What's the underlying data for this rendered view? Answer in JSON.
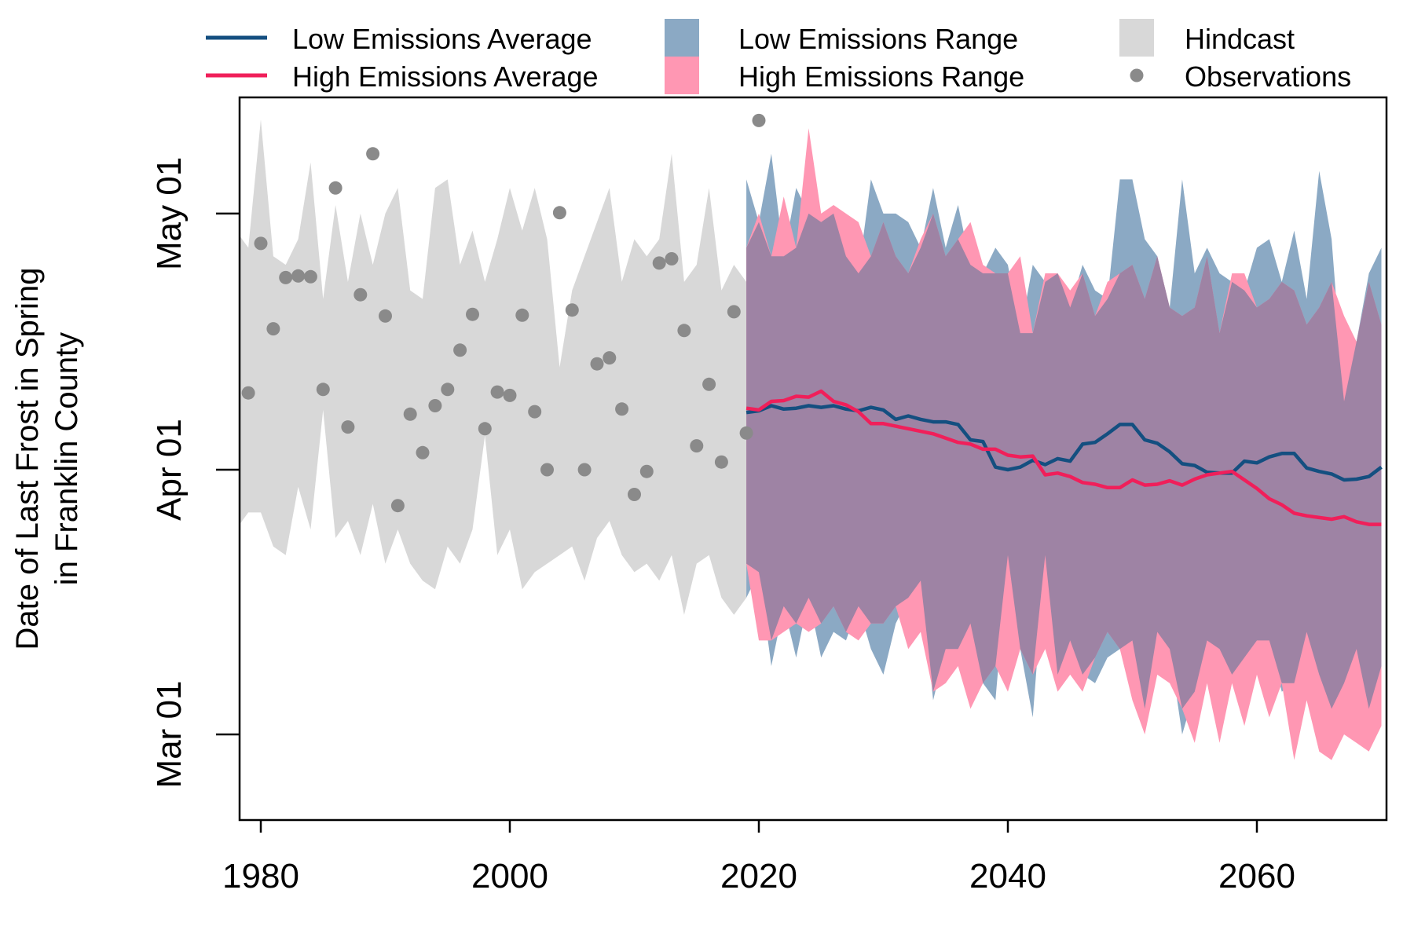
{
  "chart_data": {
    "type": "line",
    "ylabel": [
      "Date of Last Frost in Spring",
      "in Franklin County"
    ],
    "xlim": [
      1978,
      2070
    ],
    "ylim": [
      33,
      116
    ],
    "x_ticks": [
      1980,
      2000,
      2020,
      2040,
      2060
    ],
    "y_ticks": [
      {
        "value": 60,
        "label": "Mar 01"
      },
      {
        "value": 91,
        "label": "Apr 01"
      },
      {
        "value": 121,
        "label": "May 01"
      }
    ],
    "grid": false,
    "legend_position": "top",
    "colors": {
      "low_line": "#144f80",
      "high_line": "#f01f5a",
      "low_range": "#8ba9c4",
      "high_range": "#ff97b3",
      "overlap": "#9e83a4",
      "hindcast": "#d8d8d8",
      "observations": "#8a8a8a"
    },
    "legend": [
      {
        "key": "low_avg",
        "label": "Low Emissions Average",
        "symbol": "line",
        "color": "#144f80"
      },
      {
        "key": "high_avg",
        "label": "High Emissions Average",
        "symbol": "line",
        "color": "#f01f5a"
      },
      {
        "key": "low_range",
        "label": "Low Emissions Range",
        "symbol": "box",
        "color": "#8ba9c4"
      },
      {
        "key": "high_range",
        "label": "High Emissions Range",
        "symbol": "box",
        "color": "#ff97b3"
      },
      {
        "key": "hindcast",
        "label": "Hindcast",
        "symbol": "box",
        "color": "#d8d8d8"
      },
      {
        "key": "observations",
        "label": "Observations",
        "symbol": "dot",
        "color": "#8a8a8a"
      }
    ],
    "hindcast": {
      "x": [
        1978,
        1979,
        1980,
        1981,
        1982,
        1983,
        1984,
        1985,
        1986,
        1987,
        1988,
        1989,
        1990,
        1991,
        1992,
        1993,
        1994,
        1995,
        1996,
        1997,
        1998,
        1999,
        2000,
        2001,
        2002,
        2003,
        2004,
        2005,
        2006,
        2007,
        2008,
        2009,
        2010,
        2011,
        2012,
        2013,
        2014,
        2015,
        2016,
        2017,
        2018,
        2019
      ],
      "upper": [
        119,
        117,
        132,
        116,
        115,
        118,
        127,
        111,
        122,
        113,
        121,
        115,
        121,
        124,
        112,
        111,
        124,
        125,
        115,
        119,
        113,
        118,
        124,
        119,
        124,
        118,
        103,
        112,
        116,
        120,
        124,
        113,
        118,
        116,
        118,
        128,
        113,
        115,
        124,
        112,
        115,
        113
      ],
      "lower": [
        84,
        86,
        86,
        82,
        81,
        89,
        84,
        98,
        83,
        85,
        81,
        87,
        80,
        84,
        80,
        78,
        77,
        82,
        80,
        84,
        95,
        81,
        84,
        77,
        79,
        80,
        81,
        82,
        78,
        83,
        85,
        81,
        79,
        80,
        78,
        81,
        74,
        80,
        81,
        76,
        74,
        76
      ]
    },
    "observations": {
      "x": [
        1979,
        1980,
        1981,
        1982,
        1983,
        1984,
        1985,
        1986,
        1987,
        1988,
        1989,
        1990,
        1991,
        1992,
        1993,
        1994,
        1995,
        1996,
        1997,
        1998,
        1999,
        2000,
        2001,
        2002,
        2003,
        2004,
        2005,
        2006,
        2007,
        2008,
        2009,
        2010,
        2011,
        2012,
        2013,
        2014,
        2015,
        2016,
        2017,
        2018,
        2019,
        2020
      ],
      "y": [
        100,
        117.5,
        107.5,
        113.5,
        113.7,
        113.6,
        100.4,
        124,
        96,
        111.5,
        128,
        109,
        86.8,
        97.5,
        93,
        98.5,
        100.4,
        105,
        109.2,
        95.8,
        100.1,
        99.7,
        109.1,
        97.8,
        91,
        121.1,
        109.7,
        91,
        103.4,
        104.1,
        98.1,
        88.1,
        90.8,
        115.2,
        115.7,
        107.3,
        93.8,
        101,
        91.9,
        109.5,
        95.3,
        131.9
      ]
    },
    "series": [
      {
        "name": "Low Emissions Average",
        "x": [
          2019,
          2020,
          2021,
          2022,
          2023,
          2024,
          2025,
          2026,
          2027,
          2028,
          2029,
          2030,
          2031,
          2032,
          2033,
          2034,
          2035,
          2036,
          2037,
          2038,
          2039,
          2040,
          2041,
          2042,
          2043,
          2044,
          2045,
          2046,
          2047,
          2048,
          2049,
          2050,
          2051,
          2052,
          2053,
          2054,
          2055,
          2056,
          2057,
          2058,
          2059,
          2060,
          2061,
          2062,
          2063,
          2064,
          2065,
          2066,
          2067,
          2068,
          2069,
          2070
        ],
        "y": [
          97.7,
          97.9,
          98.5,
          98.1,
          98.2,
          98.5,
          98.3,
          98.5,
          98.1,
          97.9,
          98.3,
          98,
          96.9,
          97.3,
          96.9,
          96.6,
          96.6,
          96.3,
          94.5,
          94.3,
          91.3,
          91,
          91.3,
          92.1,
          91.6,
          92.3,
          92,
          94,
          94.2,
          95.2,
          96.3,
          96.3,
          94.5,
          94.1,
          93.1,
          91.7,
          91.5,
          90.7,
          90.6,
          90.6,
          92,
          91.8,
          92.5,
          92.9,
          92.9,
          91.2,
          90.8,
          90.5,
          89.8,
          89.9,
          90.2,
          91.3
        ]
      },
      {
        "name": "High Emissions Average",
        "x": [
          2019,
          2020,
          2021,
          2022,
          2023,
          2024,
          2025,
          2026,
          2027,
          2028,
          2029,
          2030,
          2031,
          2032,
          2033,
          2034,
          2035,
          2036,
          2037,
          2038,
          2039,
          2040,
          2041,
          2042,
          2043,
          2044,
          2045,
          2046,
          2047,
          2048,
          2049,
          2050,
          2051,
          2052,
          2053,
          2054,
          2055,
          2056,
          2057,
          2058,
          2059,
          2060,
          2061,
          2062,
          2063,
          2064,
          2065,
          2066,
          2067,
          2068,
          2069,
          2070
        ],
        "y": [
          98.2,
          98,
          99,
          99.1,
          99.6,
          99.5,
          100.2,
          99,
          98.6,
          97.8,
          96.4,
          96.4,
          96.1,
          95.8,
          95.5,
          95.2,
          94.7,
          94.2,
          94,
          93.4,
          93.4,
          92.7,
          92.5,
          92.6,
          90.4,
          90.6,
          90.2,
          89.5,
          89.3,
          88.9,
          88.9,
          89.8,
          89.2,
          89.3,
          89.7,
          89.2,
          89.9,
          90.4,
          90.6,
          90.8,
          89.8,
          88.8,
          87.6,
          86.9,
          85.9,
          85.6,
          85.4,
          85.2,
          85.5,
          84.9,
          84.6,
          84.6
        ]
      }
    ],
    "low_range": {
      "x": [
        2019,
        2020,
        2021,
        2022,
        2023,
        2024,
        2025,
        2026,
        2027,
        2028,
        2029,
        2030,
        2031,
        2032,
        2033,
        2034,
        2035,
        2036,
        2037,
        2038,
        2039,
        2040,
        2041,
        2042,
        2043,
        2044,
        2045,
        2046,
        2047,
        2048,
        2049,
        2050,
        2051,
        2052,
        2053,
        2054,
        2055,
        2056,
        2057,
        2058,
        2059,
        2060,
        2061,
        2062,
        2063,
        2064,
        2065,
        2066,
        2067,
        2068,
        2069,
        2070
      ],
      "upper": [
        125,
        120,
        128,
        116,
        124,
        121,
        120,
        121,
        116,
        114,
        125,
        121,
        121,
        120,
        117,
        124,
        117,
        122,
        115,
        114,
        117,
        115,
        107,
        115,
        113,
        114,
        110,
        115,
        112,
        111,
        125,
        125,
        118,
        116,
        110,
        125,
        114,
        117,
        114,
        113,
        112,
        117,
        118,
        113,
        119,
        111,
        126,
        118,
        99,
        106,
        114,
        117
      ],
      "lower": [
        76,
        79,
        68,
        75,
        69,
        76,
        69,
        72,
        71,
        75,
        70,
        67,
        73,
        76,
        78,
        64,
        70,
        70,
        73,
        66,
        64,
        81,
        70,
        62,
        81,
        67,
        71,
        67,
        66,
        69,
        70,
        71,
        63,
        72,
        70,
        60,
        65,
        71,
        70,
        67,
        69,
        71,
        71,
        65,
        66,
        72,
        67,
        63,
        66,
        70,
        63,
        68
      ]
    },
    "high_range": {
      "x": [
        2019,
        2020,
        2021,
        2022,
        2023,
        2024,
        2025,
        2026,
        2027,
        2028,
        2029,
        2030,
        2031,
        2032,
        2033,
        2034,
        2035,
        2036,
        2037,
        2038,
        2039,
        2040,
        2041,
        2042,
        2043,
        2044,
        2045,
        2046,
        2047,
        2048,
        2049,
        2050,
        2051,
        2052,
        2053,
        2054,
        2055,
        2056,
        2057,
        2058,
        2059,
        2060,
        2061,
        2062,
        2063,
        2064,
        2065,
        2066,
        2067,
        2068,
        2069,
        2070
      ],
      "upper": [
        117,
        121,
        116,
        123,
        117,
        131,
        121,
        122,
        121,
        120,
        116,
        120,
        116,
        114,
        118,
        121,
        116,
        118,
        120,
        115,
        114,
        114,
        116,
        107,
        114,
        114,
        112,
        114,
        109,
        113,
        114,
        115,
        111,
        116,
        110,
        109,
        110,
        116,
        107,
        114,
        114,
        110,
        111,
        113,
        112,
        108,
        110,
        113,
        109,
        106,
        113,
        108
      ],
      "lower": [
        80,
        71,
        71,
        72,
        73,
        72,
        73,
        75,
        72,
        71,
        73,
        73,
        75,
        70,
        72,
        65,
        66,
        68,
        63,
        66,
        68,
        65,
        70,
        67,
        70,
        65,
        67,
        65,
        69,
        72,
        70,
        64,
        60,
        67,
        66,
        63,
        59,
        66,
        59,
        66,
        61,
        67,
        62,
        66,
        57,
        64,
        58,
        57,
        60,
        59,
        58,
        61
      ]
    }
  }
}
